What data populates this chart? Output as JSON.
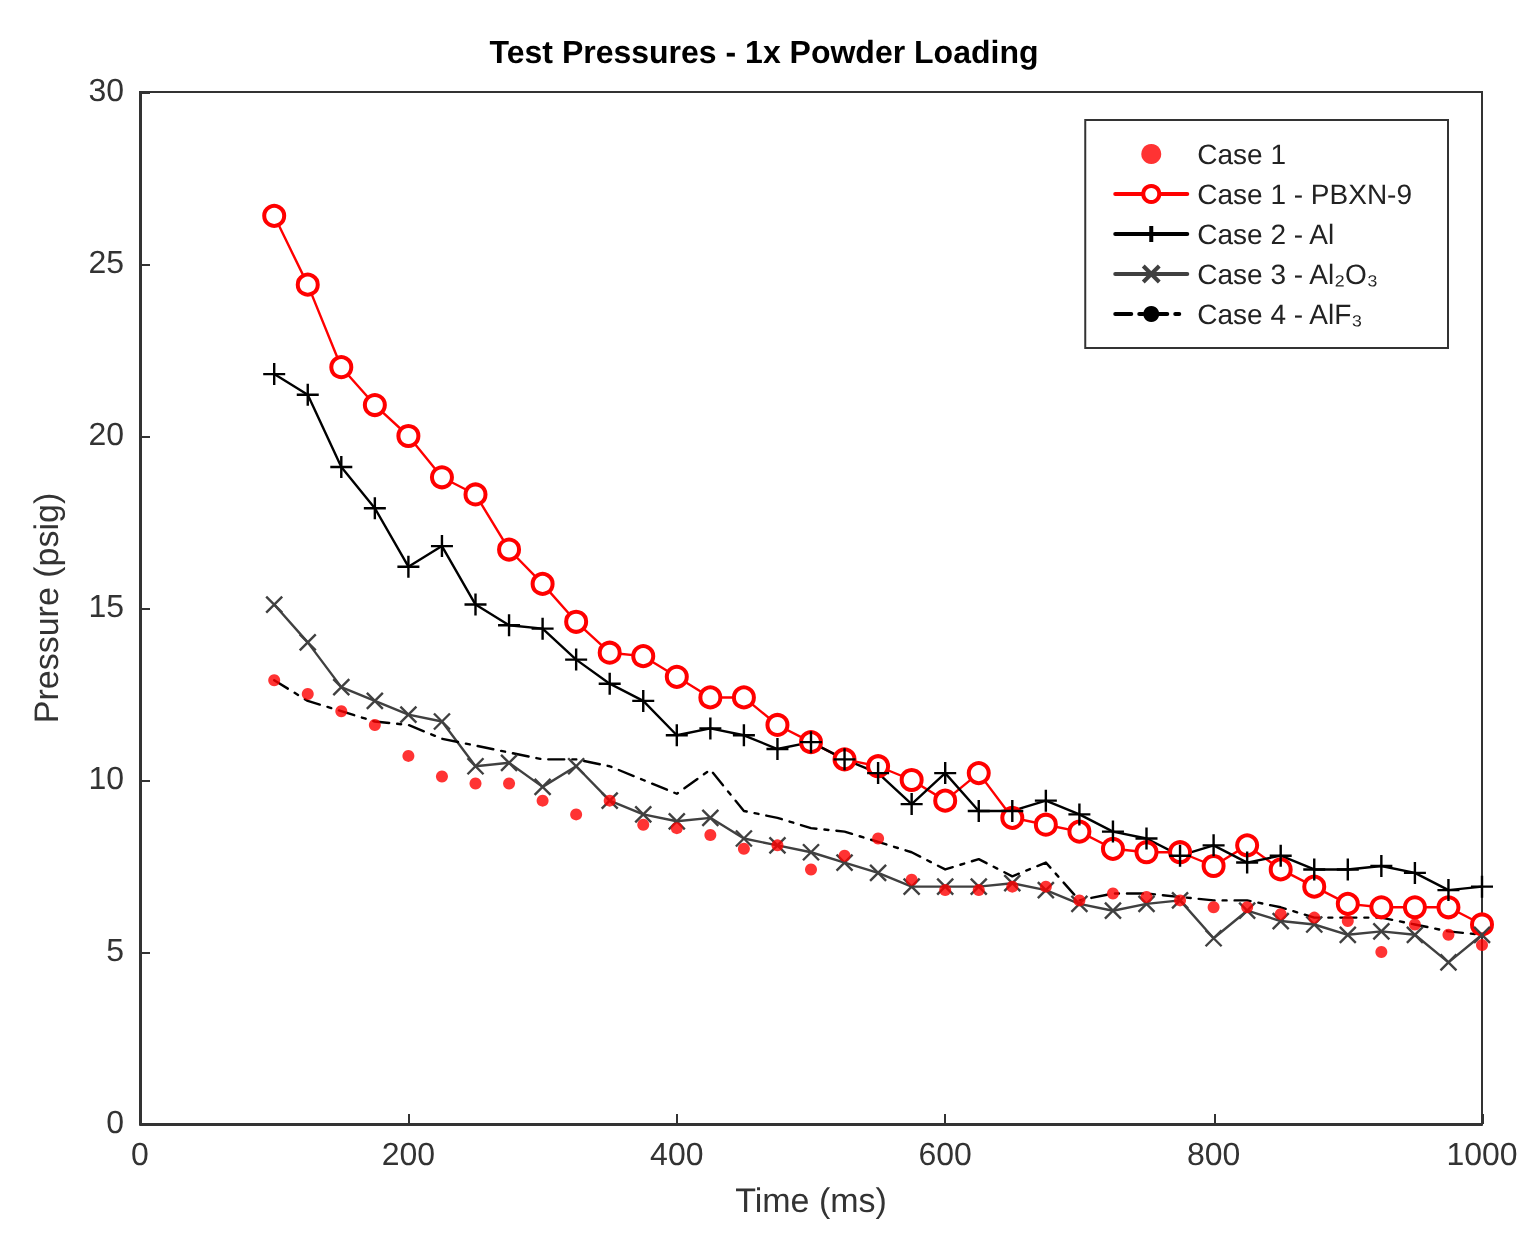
{
  "chart_data": {
    "type": "line",
    "title": "Test Pressures - 1x Powder Loading",
    "xlabel": "Time (ms)",
    "ylabel": "Pressure (psig)",
    "x": [
      100,
      125,
      150,
      175,
      200,
      225,
      250,
      275,
      300,
      325,
      350,
      375,
      400,
      425,
      450,
      475,
      500,
      525,
      550,
      575,
      600,
      625,
      650,
      675,
      700,
      725,
      750,
      775,
      800,
      825,
      850,
      875,
      900,
      925,
      950,
      975,
      1000
    ],
    "xlim": [
      0,
      1000
    ],
    "xticks": [
      0,
      200,
      400,
      600,
      800,
      {
        "value": 1000,
        "label": "1000"
      }
    ],
    "ylim": [
      0,
      30
    ],
    "yticks": [
      0,
      5,
      10,
      15,
      20,
      25,
      30
    ],
    "grid": false,
    "legend": "top right",
    "series": [
      {
        "name": "Case 1",
        "type": "scatter",
        "marker": "circle",
        "color": "#ff0000",
        "values": [
          12.9,
          12.5,
          12.0,
          11.6,
          10.7,
          10.1,
          9.9,
          9.9,
          9.4,
          9.0,
          9.4,
          8.7,
          8.6,
          8.4,
          8.0,
          8.1,
          7.4,
          7.8,
          8.3,
          7.1,
          6.8,
          6.8,
          6.9,
          6.9,
          6.5,
          6.7,
          6.6,
          6.5,
          6.3,
          6.3,
          6.1,
          6.0,
          5.9,
          5.0,
          5.8,
          5.5,
          5.2
        ]
      },
      {
        "name": "Case 1 - PBXN-9",
        "marker": "open_circle",
        "line_style": "solid",
        "color": "#ff0000",
        "values": [
          26.4,
          24.4,
          22.0,
          20.9,
          20.0,
          18.8,
          18.3,
          16.7,
          15.7,
          14.6,
          13.7,
          13.6,
          13.0,
          12.4,
          12.4,
          11.6,
          11.1,
          10.6,
          10.4,
          10.0,
          9.4,
          10.2,
          8.9,
          8.7,
          8.5,
          8.0,
          7.9,
          7.9,
          7.5,
          8.1,
          7.4,
          6.9,
          6.4,
          6.3,
          6.3,
          6.3,
          5.8
        ]
      },
      {
        "name": "Case 2 - Al",
        "marker": "plus",
        "line_style": "solid",
        "color": "#000000",
        "values": [
          21.8,
          21.2,
          19.1,
          17.9,
          16.2,
          16.8,
          15.1,
          14.5,
          14.4,
          13.5,
          12.8,
          12.3,
          11.3,
          11.5,
          11.3,
          10.9,
          11.1,
          10.6,
          10.2,
          9.3,
          10.2,
          9.1,
          9.1,
          9.4,
          9.0,
          8.5,
          8.3,
          7.8,
          8.1,
          7.6,
          7.8,
          7.4,
          7.4,
          7.5,
          7.3,
          6.8,
          6.9
        ]
      },
      {
        "name": "Case 3 - Al₂O₃",
        "marker": "cross",
        "line_style": "solid",
        "color": "#404040",
        "values": [
          15.1,
          14.0,
          12.7,
          12.3,
          11.9,
          11.7,
          10.4,
          10.5,
          9.8,
          10.4,
          9.4,
          9.0,
          8.8,
          8.9,
          8.3,
          8.1,
          7.9,
          7.6,
          7.3,
          6.9,
          6.9,
          6.9,
          7.0,
          6.8,
          6.4,
          6.2,
          6.4,
          6.5,
          5.4,
          6.2,
          5.9,
          5.8,
          5.5,
          5.6,
          5.5,
          4.7,
          5.5
        ]
      },
      {
        "name": "Case 4 - AlF₃",
        "marker": "none",
        "line_style": "dashdot",
        "color": "#000000",
        "values": [
          12.9,
          12.3,
          12.0,
          11.7,
          11.6,
          11.2,
          11.0,
          10.8,
          10.6,
          10.6,
          10.4,
          10.0,
          9.6,
          10.3,
          9.1,
          8.9,
          8.6,
          8.5,
          8.2,
          7.9,
          7.4,
          7.7,
          7.2,
          7.6,
          6.5,
          6.7,
          6.7,
          6.6,
          6.5,
          6.5,
          6.3,
          6.0,
          6.0,
          6.0,
          5.8,
          5.6,
          5.5
        ]
      }
    ]
  }
}
